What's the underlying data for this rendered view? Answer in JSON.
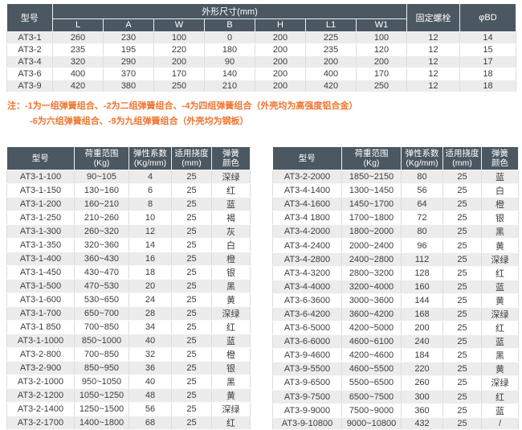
{
  "colors": {
    "header_bg": "#4b5761",
    "row_alt_bg": "#ececec",
    "note_color": "#f0742e"
  },
  "dimension_table": {
    "header": {
      "model": "型号",
      "dim_group": "外形尺寸(mm)",
      "dim_cols": [
        "L",
        "A",
        "W",
        "B",
        "H",
        "L1",
        "W1"
      ],
      "bolt": "固定螺栓",
      "bd": "φBD"
    },
    "rows": [
      [
        "AT3-1",
        "260",
        "230",
        "100",
        "0",
        "200",
        "225",
        "100",
        "12",
        "14"
      ],
      [
        "AT3-2",
        "235",
        "195",
        "220",
        "180",
        "200",
        "235",
        "120",
        "12",
        "15"
      ],
      [
        "AT3-4",
        "320",
        "290",
        "200",
        "90",
        "200",
        "200",
        "200",
        "12",
        "17"
      ],
      [
        "AT3-6",
        "400",
        "370",
        "170",
        "140",
        "200",
        "400",
        "170",
        "12",
        "18"
      ],
      [
        "AT3-9",
        "420",
        "380",
        "250",
        "210",
        "200",
        "420",
        "250",
        "12",
        "18"
      ]
    ]
  },
  "note": {
    "prefix": "注：",
    "line1": "-1为一组弹簧组合、-2为二组弹簧组合、-4为四组弹簧组合（外壳均为高强度铝合金）",
    "line2": "-6为六组弹簧组合、-9为九组弹簧组合（外壳均为钢板）"
  },
  "spring_tables": {
    "header_lines": [
      [
        "型号"
      ],
      [
        "荷重范围",
        "(Kg)"
      ],
      [
        "弹性系数",
        "(Kg/mm)"
      ],
      [
        "适用挠度",
        "(mm)"
      ],
      [
        "弹簧",
        "颜色"
      ]
    ],
    "left_rows": [
      [
        "AT3-1-100",
        "90~105",
        "4",
        "25",
        "深绿"
      ],
      [
        "AT3-1-150",
        "130~160",
        "6",
        "25",
        "红"
      ],
      [
        "AT3-1-200",
        "160~210",
        "8",
        "25",
        "蓝"
      ],
      [
        "AT3-1-250",
        "210~260",
        "10",
        "25",
        "褐"
      ],
      [
        "AT3-1-300",
        "260~320",
        "12",
        "25",
        "灰"
      ],
      [
        "AT3-1-350",
        "320~360",
        "14",
        "25",
        "白"
      ],
      [
        "AT3-1-400",
        "360~430",
        "16",
        "25",
        "橙"
      ],
      [
        "AT3-1-450",
        "430~470",
        "18",
        "25",
        "银"
      ],
      [
        "AT3-1-500",
        "470~530",
        "20",
        "25",
        "黑"
      ],
      [
        "AT3-1-600",
        "530~650",
        "24",
        "25",
        "黄"
      ],
      [
        "AT3-1-700",
        "650~700",
        "28",
        "25",
        "深绿"
      ],
      [
        "AT3-1 850",
        "700~850",
        "34",
        "25",
        "红"
      ],
      [
        "AT3-1-1000",
        "850~1000",
        "40",
        "25",
        "蓝"
      ],
      [
        "AT3-2-800",
        "700~850",
        "32",
        "25",
        "橙"
      ],
      [
        "AT3-2-900",
        "850~950",
        "36",
        "25",
        "银"
      ],
      [
        "AT3-2-1000",
        "950~1050",
        "40",
        "25",
        "黑"
      ],
      [
        "AT3-2-1200",
        "1050~1250",
        "48",
        "25",
        "黄"
      ],
      [
        "AT3-2-1400",
        "1250~1500",
        "56",
        "25",
        "深绿"
      ],
      [
        "AT3-2-1700",
        "1400~1800",
        "68",
        "25",
        "红"
      ]
    ],
    "right_rows": [
      [
        "AT3-2-2000",
        "1850~2150",
        "80",
        "25",
        "蓝"
      ],
      [
        "AT3-4-1400",
        "1300~1450",
        "56",
        "25",
        "白"
      ],
      [
        "AT3-4-1600",
        "1450~1700",
        "64",
        "25",
        "橙"
      ],
      [
        "AT3-4 1800",
        "1700~1800",
        "72",
        "25",
        "银"
      ],
      [
        "AT3-4-2000",
        "1800~2000",
        "80",
        "25",
        "黑"
      ],
      [
        "AT3-4-2400",
        "2000~2400",
        "96",
        "25",
        "黄"
      ],
      [
        "AT3-4-2800",
        "2400~2800",
        "112",
        "25",
        "深绿"
      ],
      [
        "AT3-4-3200",
        "2800~3200",
        "128",
        "25",
        "红"
      ],
      [
        "AT3-4-4000",
        "3200~4000",
        "160",
        "25",
        "蓝"
      ],
      [
        "AT3-6-3600",
        "3000~3600",
        "144",
        "25",
        "黄"
      ],
      [
        "AT3-6-4200",
        "3600~4200",
        "168",
        "25",
        "深绿"
      ],
      [
        "AT3-6-5000",
        "4200~5000",
        "200",
        "25",
        "红"
      ],
      [
        "AT3-6-6000",
        "4600~6100",
        "240",
        "25",
        "蓝"
      ],
      [
        "AT3-9-4600",
        "4200~4600",
        "184",
        "25",
        "黑"
      ],
      [
        "AT3-9-5500",
        "4600~5500",
        "220",
        "25",
        "黄"
      ],
      [
        "AT3-9-6500",
        "5500~6500",
        "260",
        "25",
        "深绿"
      ],
      [
        "AT3-9-7500",
        "6500~7500",
        "300",
        "25",
        "红"
      ],
      [
        "AT3-9-9000",
        "7500~9000",
        "360",
        "25",
        "蓝"
      ],
      [
        "AT3-9-10800",
        "9000~10800",
        "432",
        "25",
        "/"
      ]
    ]
  }
}
